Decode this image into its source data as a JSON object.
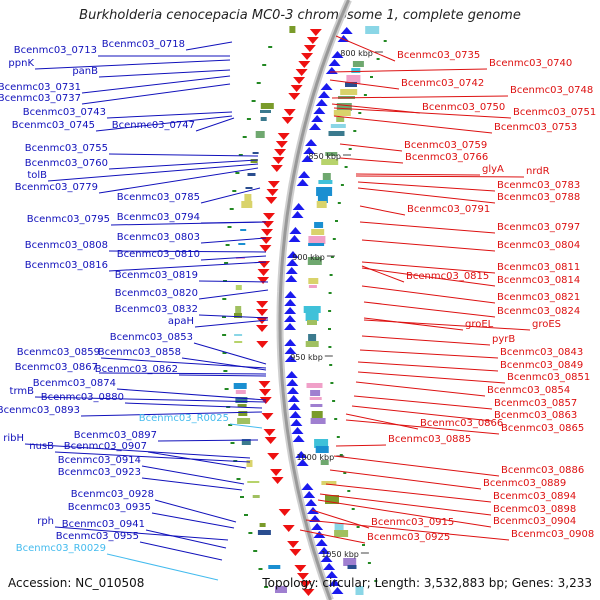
{
  "header": {
    "title": "Burkholderia cenocepacia MC0-3 chromosome 1, complete genome"
  },
  "footer": {
    "accession": "Accession: NC_010508",
    "topology": "Topology: circular; Length: 3,532,883 bp; Genes: 3,233"
  },
  "colors": {
    "left_label": "#1111bb",
    "left_rna_label": "#44bbee",
    "right_label": "#dd1111",
    "forward_arrow": "#1a1aee",
    "reverse_arrow": "#ee1111",
    "backbone": "#999999",
    "tick": "#228822"
  },
  "scale": {
    "ticks": [
      "800 kbp",
      "850 kbp",
      "900 kbp",
      "950 kbp",
      "1000 kbp",
      "1050 kbp"
    ]
  },
  "left_labels": [
    {
      "text": "Bcenmc03_0718",
      "type": "gene"
    },
    {
      "text": "Bcenmc03_0713",
      "type": "gene"
    },
    {
      "text": "ppnK",
      "type": "gene"
    },
    {
      "text": "panB",
      "type": "gene"
    },
    {
      "text": "Bcenmc03_0731",
      "type": "gene"
    },
    {
      "text": "Bcenmc03_0737",
      "type": "gene"
    },
    {
      "text": "Bcenmc03_0743",
      "type": "gene"
    },
    {
      "text": "Bcenmc03_0745",
      "type": "gene"
    },
    {
      "text": "Bcenmc03_0747",
      "type": "gene"
    },
    {
      "text": "Bcenmc03_0755",
      "type": "gene"
    },
    {
      "text": "Bcenmc03_0760",
      "type": "gene"
    },
    {
      "text": "tolB",
      "type": "gene"
    },
    {
      "text": "Bcenmc03_0779",
      "type": "gene"
    },
    {
      "text": "Bcenmc03_0785",
      "type": "gene"
    },
    {
      "text": "Bcenmc03_0795",
      "type": "gene"
    },
    {
      "text": "Bcenmc03_0794",
      "type": "gene"
    },
    {
      "text": "Bcenmc03_0803",
      "type": "gene"
    },
    {
      "text": "Bcenmc03_0808",
      "type": "gene"
    },
    {
      "text": "Bcenmc03_0810",
      "type": "gene"
    },
    {
      "text": "Bcenmc03_0816",
      "type": "gene"
    },
    {
      "text": "Bcenmc03_0819",
      "type": "gene"
    },
    {
      "text": "Bcenmc03_0820",
      "type": "gene"
    },
    {
      "text": "Bcenmc03_0832",
      "type": "gene"
    },
    {
      "text": "apaH",
      "type": "gene"
    },
    {
      "text": "Bcenmc03_0853",
      "type": "gene"
    },
    {
      "text": "Bcenmc03_0859",
      "type": "gene"
    },
    {
      "text": "Bcenmc03_0858",
      "type": "gene"
    },
    {
      "text": "Bcenmc03_0867",
      "type": "gene"
    },
    {
      "text": "Bcenmc03_0862",
      "type": "gene"
    },
    {
      "text": "Bcenmc03_0874",
      "type": "gene"
    },
    {
      "text": "trmB",
      "type": "gene"
    },
    {
      "text": "Bcenmc03_0880",
      "type": "gene"
    },
    {
      "text": "Bcenmc03_0893",
      "type": "gene"
    },
    {
      "text": "Bcenmc03_R0025",
      "type": "rna"
    },
    {
      "text": "Bcenmc03_0897",
      "type": "gene"
    },
    {
      "text": "ribH",
      "type": "gene"
    },
    {
      "text": "nusB",
      "type": "gene"
    },
    {
      "text": "Bcenmc03_0907",
      "type": "gene"
    },
    {
      "text": "Bcenmc03_0914",
      "type": "gene"
    },
    {
      "text": "Bcenmc03_0923",
      "type": "gene"
    },
    {
      "text": "Bcenmc03_0928",
      "type": "gene"
    },
    {
      "text": "Bcenmc03_0935",
      "type": "gene"
    },
    {
      "text": "rph",
      "type": "gene"
    },
    {
      "text": "Bcenmc03_0941",
      "type": "gene"
    },
    {
      "text": "Bcenmc03_0955",
      "type": "gene"
    },
    {
      "text": "Bcenmc03_R0029",
      "type": "rna"
    }
  ],
  "right_labels": [
    {
      "text": "Bcenmc03_0735"
    },
    {
      "text": "Bcenmc03_0740"
    },
    {
      "text": "Bcenmc03_0742"
    },
    {
      "text": "Bcenmc03_0748"
    },
    {
      "text": "Bcenmc03_0750"
    },
    {
      "text": "Bcenmc03_0751"
    },
    {
      "text": "Bcenmc03_0753"
    },
    {
      "text": "Bcenmc03_0759"
    },
    {
      "text": "Bcenmc03_0766"
    },
    {
      "text": "glyA"
    },
    {
      "text": "nrdR"
    },
    {
      "text": "Bcenmc03_0783"
    },
    {
      "text": "Bcenmc03_0788"
    },
    {
      "text": "Bcenmc03_0791"
    },
    {
      "text": "Bcenmc03_0797"
    },
    {
      "text": "Bcenmc03_0804"
    },
    {
      "text": "Bcenmc03_0811"
    },
    {
      "text": "Bcenmc03_0815"
    },
    {
      "text": "Bcenmc03_0814"
    },
    {
      "text": "Bcenmc03_0821"
    },
    {
      "text": "Bcenmc03_0824"
    },
    {
      "text": "groEL"
    },
    {
      "text": "groES"
    },
    {
      "text": "pyrB"
    },
    {
      "text": "Bcenmc03_0843"
    },
    {
      "text": "Bcenmc03_0849"
    },
    {
      "text": "Bcenmc03_0851"
    },
    {
      "text": "Bcenmc03_0854"
    },
    {
      "text": "Bcenmc03_0857"
    },
    {
      "text": "Bcenmc03_0863"
    },
    {
      "text": "Bcenmc03_0866"
    },
    {
      "text": "Bcenmc03_0865"
    },
    {
      "text": "Bcenmc03_0885"
    },
    {
      "text": "Bcenmc03_0886"
    },
    {
      "text": "Bcenmc03_0889"
    },
    {
      "text": "Bcenmc03_0894"
    },
    {
      "text": "Bcenmc03_0898"
    },
    {
      "text": "Bcenmc03_0904"
    },
    {
      "text": "Bcenmc03_0915"
    },
    {
      "text": "Bcenmc03_0908"
    },
    {
      "text": "Bcenmc03_0925"
    }
  ]
}
